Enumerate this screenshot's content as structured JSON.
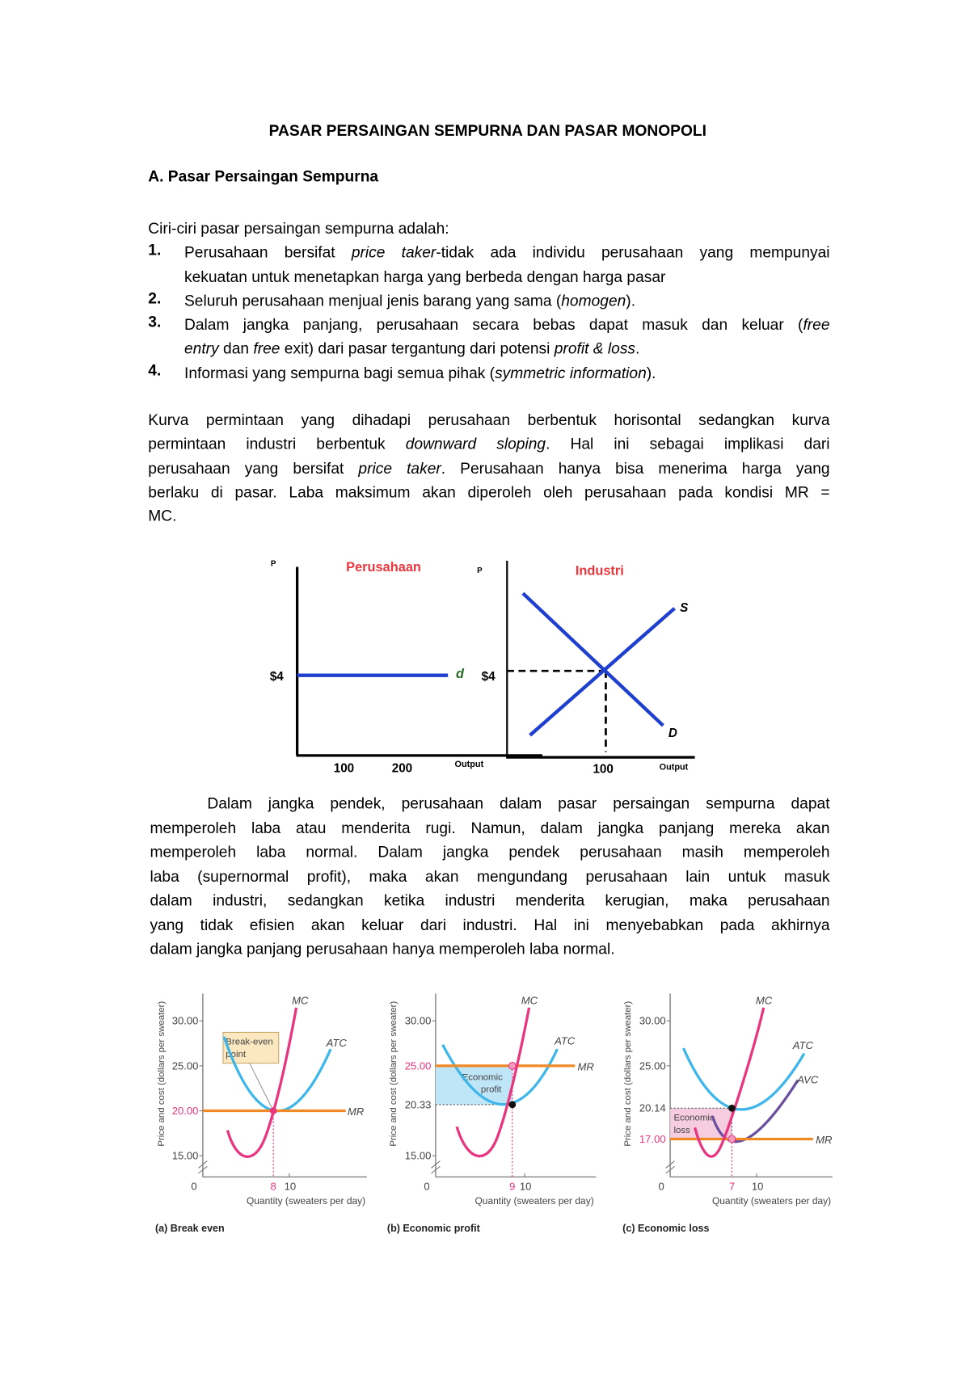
{
  "title": "PASAR PERSAINGAN SEMPURNA DAN PASAR MONOPOLI",
  "heading": "A. Pasar Persaingan Sempurna",
  "intro": "Ciri-ciri pasar persaingan sempurna adalah:",
  "items": [
    {
      "num": "1.",
      "lines": [
        [
          {
            "t": "Perusahaan bersifat "
          },
          {
            "t": "price taker",
            "i": true
          },
          {
            "t": "-tidak ada individu perusahaan yang mempunyai"
          }
        ],
        [
          {
            "t": "kekuatan untuk menetapkan harga yang berbeda dengan harga pasar"
          }
        ]
      ]
    },
    {
      "num": "2.",
      "lines": [
        [
          {
            "t": "Seluruh perusahaan menjual jenis barang yang sama ("
          },
          {
            "t": "homogen",
            "i": true
          },
          {
            "t": ")."
          }
        ]
      ]
    },
    {
      "num": "3.",
      "lines": [
        [
          {
            "t": "Dalam jangka panjang, perusahaan secara bebas dapat masuk dan keluar ("
          },
          {
            "t": "free",
            "i": true
          }
        ],
        [
          {
            "t": "entry",
            "i": true
          },
          {
            "t": " dan "
          },
          {
            "t": "free",
            "i": true
          },
          {
            "t": " exit) dari pasar tergantung dari potensi "
          },
          {
            "t": "profit & loss",
            "i": true
          },
          {
            "t": "."
          }
        ]
      ]
    },
    {
      "num": "4.",
      "lines": [
        [
          {
            "t": "Informasi yang sempurna bagi semua pihak ("
          },
          {
            "t": "symmetric information",
            "i": true
          },
          {
            "t": ")."
          }
        ]
      ]
    }
  ],
  "paragraph1": [
    [
      {
        "t": "Kurva permintaan yang dihadapi perusahaan berbentuk horisontal sedangkan kurva"
      }
    ],
    [
      {
        "t": "permintaan industri berbentuk "
      },
      {
        "t": "downward sloping",
        "i": true
      },
      {
        "t": ". Hal ini sebagai implikasi dari"
      }
    ],
    [
      {
        "t": "perusahaan yang bersifat "
      },
      {
        "t": "price taker",
        "i": true
      },
      {
        "t": ". Perusahaan hanya bisa menerima harga yang"
      }
    ],
    [
      {
        "t": "berlaku di pasar. Laba maksimum akan diperoleh oleh perusahaan pada kondisi MR ="
      }
    ],
    [
      {
        "t": "MC."
      }
    ]
  ],
  "paragraph2": [
    [
      {
        "t": "Dalam jangka pendek, perusahaan dalam pasar persaingan sempurna dapat"
      }
    ],
    [
      {
        "t": "memperoleh laba atau menderita rugi. Namun, dalam jangka panjang mereka akan"
      }
    ],
    [
      {
        "t": "memperoleh laba normal. Dalam jangka pendek perusahaan masih memperoleh"
      }
    ],
    [
      {
        "t": "laba (supernormal profit), maka akan mengundang perusahaan lain untuk masuk"
      }
    ],
    [
      {
        "t": "dalam industri, sedangkan ketika industri menderita kerugian, maka perusahaan"
      }
    ],
    [
      {
        "t": "yang tidak efisien akan keluar dari industri. Hal ini menyebabkan pada akhirnya"
      }
    ],
    [
      {
        "t": "dalam jangka panjang perusahaan hanya memperoleh laba normal."
      }
    ]
  ],
  "figure1": {
    "firm": {
      "title": "Perusahaan",
      "ylabel": "P",
      "price": "$4",
      "curve": "d",
      "xticks": [
        "100",
        "200"
      ],
      "xlabel": "Output"
    },
    "industry": {
      "title": "Industri",
      "ylabel": "P",
      "price": "$4",
      "supply": "S",
      "demand": "D",
      "xtick": "100",
      "xlabel": "Output"
    },
    "title_color": "#e8383d",
    "line_color": "#1f3fcf"
  },
  "figure2": {
    "ylabel": "Price and cost (dollars per sweater)",
    "xlabel": "Quantity (sweaters per day)",
    "panels": [
      {
        "caption": "(a) Break even",
        "yticks": [
          "30.00",
          "25.00",
          "20.00",
          "15.00"
        ],
        "price": "20.00",
        "q": "8",
        "xticks": [
          "0",
          "10"
        ],
        "labels": {
          "mc": "MC",
          "atc": "ATC",
          "mr": "MR"
        },
        "callout": [
          "Break-even",
          "point"
        ]
      },
      {
        "caption": "(b) Economic profit",
        "yticks": [
          "30.00",
          "25.00",
          "20.33",
          "15.00"
        ],
        "price": "25.00",
        "q": "9",
        "xticks": [
          "0",
          "10"
        ],
        "labels": {
          "mc": "MC",
          "atc": "ATC",
          "mr": "MR"
        },
        "callout": [
          "Economic",
          "profit"
        ]
      },
      {
        "caption": "(c) Economic loss",
        "yticks": [
          "30.00",
          "25.00",
          "20.14",
          "17.00"
        ],
        "price": "17.00",
        "q": "7",
        "xticks": [
          "0",
          "10"
        ],
        "labels": {
          "mc": "MC",
          "atc": "ATC",
          "avc": "AVC",
          "mr": "MR"
        },
        "callout": [
          "Economic",
          "loss"
        ]
      }
    ],
    "colors": {
      "mc": "#e8357f",
      "atc": "#3fb6ea",
      "avc": "#6a4fa0",
      "mr": "#f08a24",
      "price_label": "#e8357f"
    }
  }
}
